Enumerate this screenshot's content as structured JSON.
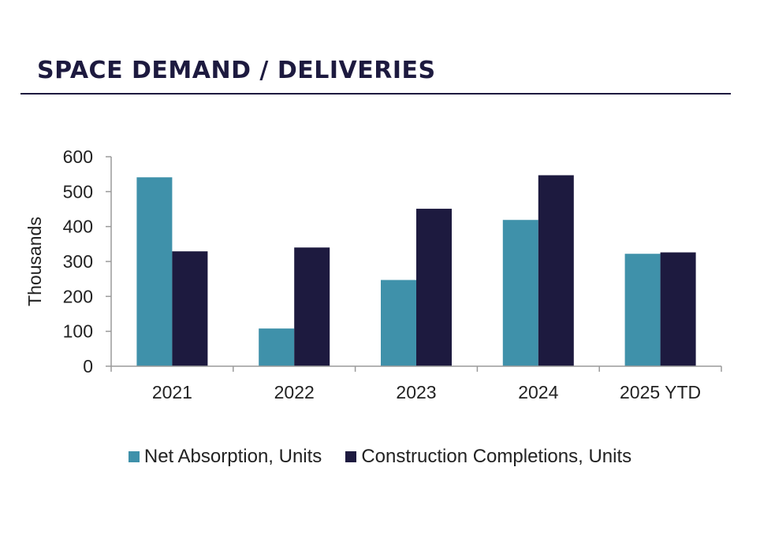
{
  "header": {
    "title": "SPACE DEMAND / DELIVERIES"
  },
  "chart_data": {
    "type": "bar",
    "title": "SPACE DEMAND / DELIVERIES",
    "categories": [
      "2021",
      "2022",
      "2023",
      "2024",
      "2025 YTD"
    ],
    "series": [
      {
        "name": "Net Absorption, Units",
        "color": "#3f91aa",
        "values": [
          541,
          108,
          247,
          419,
          322
        ]
      },
      {
        "name": "Construction Completions, Units",
        "color": "#1d1a3f",
        "values": [
          329,
          340,
          451,
          547,
          326
        ]
      }
    ],
    "xlabel": "",
    "ylabel": "Thousands",
    "ylim": [
      0,
      600
    ],
    "yticks": [
      "0",
      "100",
      "200",
      "300",
      "400",
      "500",
      "600"
    ],
    "yticks_values": [
      0,
      100,
      200,
      300,
      400,
      500,
      600
    ],
    "grid": false,
    "legend_position": "bottom"
  }
}
